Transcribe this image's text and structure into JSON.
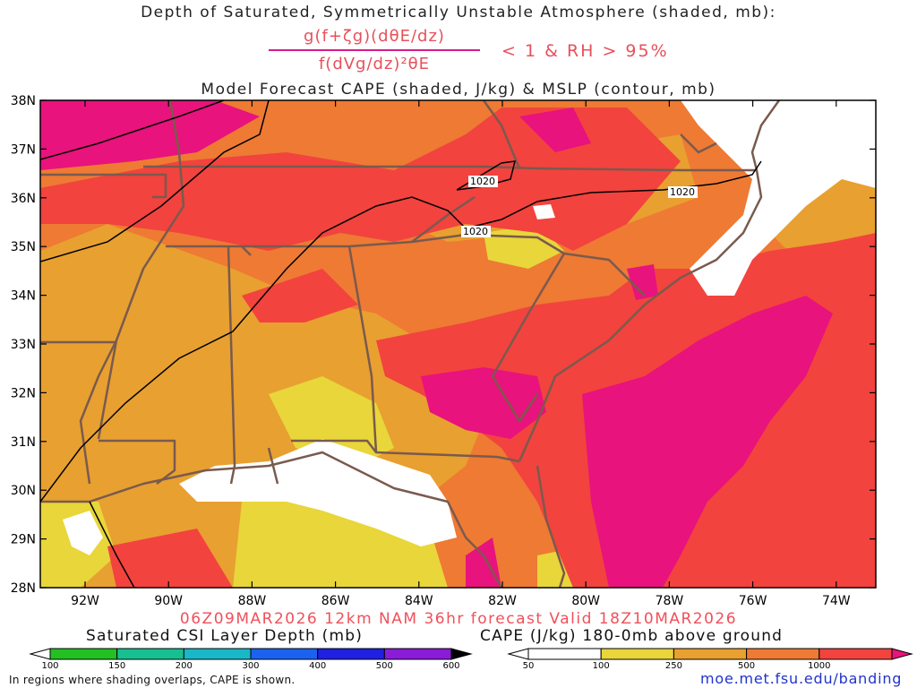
{
  "title": {
    "line1": "Depth of Saturated, Symmetrically Unstable Atmosphere (shaded, mb):",
    "numerator": "g(f+ζg)(dθE/dz)",
    "denominator": "f(dVg/dz)²θE",
    "condition": "< 1 & RH > 95%",
    "line2": "Model Forecast CAPE (shaded, J/kg) & MSLP (contour, mb)"
  },
  "map": {
    "lat_labels": [
      "38N",
      "37N",
      "36N",
      "35N",
      "34N",
      "33N",
      "32N",
      "31N",
      "30N",
      "29N",
      "28N"
    ],
    "lon_labels": [
      "92W",
      "90W",
      "88W",
      "86W",
      "84W",
      "82W",
      "80W",
      "78W",
      "76W",
      "74W"
    ],
    "isobar_labels": [
      "1020",
      "1020",
      "1020"
    ],
    "colors": {
      "cape_50_100": "#e8d63a",
      "cape_100_250": "#e8a030",
      "cape_250_500": "#ee7a34",
      "cape_500_1000": "#f2433e",
      "cape_over_1000": "#e8137c",
      "borders": "#7a5a4e",
      "isobar": "#000000"
    }
  },
  "valid_line": "06Z09MAR2026 12km NAM 36hr forecast Valid 18Z10MAR2026",
  "csi_legend": {
    "label": "Saturated CSI Layer Depth (mb)",
    "ticks": [
      "100",
      "150",
      "200",
      "300",
      "400",
      "500",
      "600"
    ],
    "colors": [
      "#22c022",
      "#16c090",
      "#18b8c8",
      "#1c62f0",
      "#2020e0",
      "#8a1cd8",
      "#000000"
    ]
  },
  "cape_legend": {
    "label": "CAPE (J/kg) 180-0mb above ground",
    "ticks": [
      "50",
      "100",
      "250",
      "500",
      "1000"
    ],
    "colors": [
      "#e8d63a",
      "#e8a030",
      "#ee7a34",
      "#f2433e",
      "#e8137c"
    ]
  },
  "footnote": "In regions where shading overlaps, CAPE is shown.",
  "url": "moe.met.fsu.edu/banding"
}
